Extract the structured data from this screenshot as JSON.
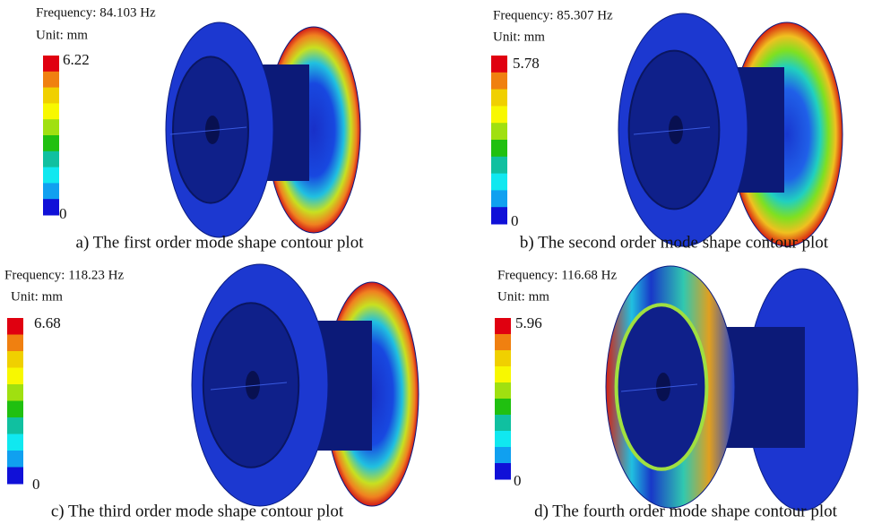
{
  "panels": [
    {
      "frequency": "Frequency: 84.103 Hz",
      "unit": "Unit: mm",
      "max": 6.22,
      "min": 0,
      "caption": "a) The first order mode shape contour plot"
    },
    {
      "frequency": "Frequency: 85.307 Hz",
      "unit": "Unit: mm",
      "max": 5.78,
      "min": 0,
      "caption": "b) The second order mode shape contour plot"
    },
    {
      "frequency": "Frequency: 118.23 Hz",
      "unit": "Unit: mm",
      "max": 6.68,
      "min": 0,
      "caption": "c) The third order mode shape contour plot"
    },
    {
      "frequency": "Frequency: 116.68 Hz",
      "unit": "Unit: mm",
      "max": 5.96,
      "min": 0,
      "caption": "d) The fourth order mode shape contour plot"
    }
  ]
}
